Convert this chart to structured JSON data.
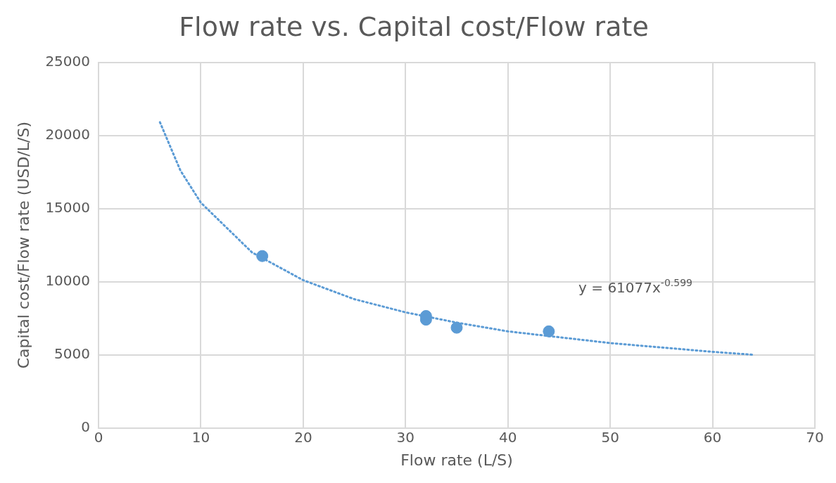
{
  "chart_data": {
    "type": "scatter",
    "title": "Flow rate vs. Capital cost/Flow rate",
    "xlabel": "Flow rate (L/S)",
    "ylabel": "Capital cost/Flow rate (USD/L/S)",
    "xlim": [
      0,
      70
    ],
    "xticks": [
      0,
      10,
      20,
      30,
      40,
      50,
      60,
      70
    ],
    "ylim": [
      0,
      25000
    ],
    "yticks": [
      0,
      5000,
      10000,
      15000,
      20000,
      25000
    ],
    "grid": true,
    "legend": false,
    "marker": "circle",
    "series": [
      {
        "color": "#5b9bd5",
        "x": [
          16,
          32,
          32,
          35,
          44
        ],
        "values": [
          11750,
          7650,
          7400,
          6850,
          6600
        ]
      },
      {
        "type": "line",
        "color": "#5b9bd5",
        "marker": "none",
        "line_style": "dotted",
        "x": [
          6,
          8,
          10,
          15,
          20,
          25,
          30,
          35,
          40,
          45,
          50,
          55,
          60,
          64
        ],
        "values": [
          20900,
          17600,
          15400,
          12000,
          10100,
          8800,
          7900,
          7200,
          6600,
          6200,
          5800,
          5500,
          5200,
          5000
        ]
      }
    ],
    "annotations": [
      "y = 61077x$^{-0.599}$"
    ]
  }
}
